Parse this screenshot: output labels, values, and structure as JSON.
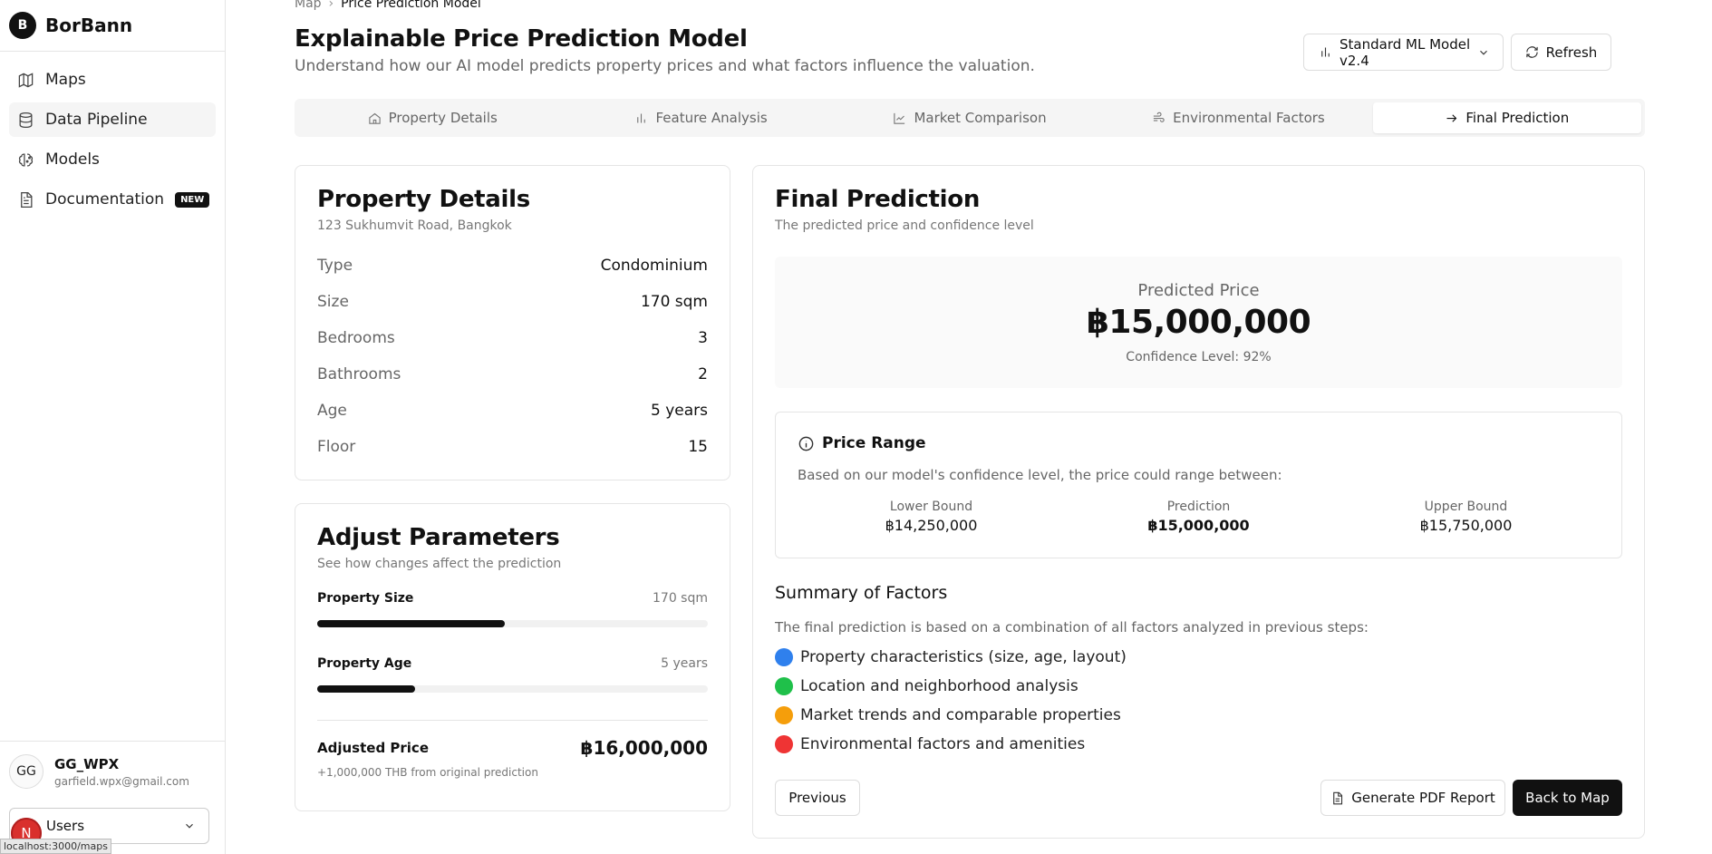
{
  "app": {
    "logo_letter": "B",
    "name": "BorBann"
  },
  "sidebar": {
    "items": [
      {
        "label": "Maps",
        "icon": "map-icon"
      },
      {
        "label": "Data Pipeline",
        "icon": "database-icon"
      },
      {
        "label": "Models",
        "icon": "brain-icon"
      },
      {
        "label": "Documentation",
        "icon": "document-icon",
        "badge": "NEW"
      }
    ]
  },
  "user": {
    "initials": "GG",
    "name": "GG_WPX",
    "email": "garfield.wpx@gmail.com"
  },
  "users_select": {
    "value": "Users"
  },
  "overlay": {
    "badge_letter": "N",
    "url_tooltip": "localhost:3000/maps"
  },
  "breadcrumb": {
    "parent": "Map",
    "current": "Price Prediction Model"
  },
  "header": {
    "title": "Explainable Price Prediction Model",
    "subtitle": "Understand how our AI model predicts property prices and what factors influence the valuation.",
    "model_select": "Standard ML Model v2.4",
    "refresh_label": "Refresh"
  },
  "tabs": [
    {
      "label": "Property Details",
      "icon": "home-icon"
    },
    {
      "label": "Feature Analysis",
      "icon": "bar-chart-icon"
    },
    {
      "label": "Market Comparison",
      "icon": "line-chart-icon"
    },
    {
      "label": "Environmental Factors",
      "icon": "wind-icon"
    },
    {
      "label": "Final Prediction",
      "icon": "arrow-right-icon",
      "active": true
    }
  ],
  "property": {
    "title": "Property Details",
    "address": "123 Sukhumvit Road, Bangkok",
    "rows": [
      {
        "key": "Type",
        "value": "Condominium"
      },
      {
        "key": "Size",
        "value": "170 sqm"
      },
      {
        "key": "Bedrooms",
        "value": "3"
      },
      {
        "key": "Bathrooms",
        "value": "2"
      },
      {
        "key": "Age",
        "value": "5 years"
      },
      {
        "key": "Floor",
        "value": "15"
      }
    ]
  },
  "adjust": {
    "title": "Adjust Parameters",
    "subtitle": "See how changes affect the prediction",
    "size": {
      "label": "Property Size",
      "value": "170 sqm",
      "fill_pct": 48
    },
    "age": {
      "label": "Property Age",
      "value": "5 years",
      "fill_pct": 25
    },
    "adjusted_label": "Adjusted Price",
    "adjusted_value": "฿16,000,000",
    "adjusted_note": "+1,000,000 THB from original prediction"
  },
  "final": {
    "title": "Final Prediction",
    "subtitle": "The predicted price and confidence level",
    "predicted_label": "Predicted Price",
    "predicted_value": "฿15,000,000",
    "confidence": "Confidence Level: 92%",
    "range": {
      "title": "Price Range",
      "desc": "Based on our model's confidence level, the price could range between:",
      "lower_label": "Lower Bound",
      "lower_value": "฿14,250,000",
      "pred_label": "Prediction",
      "pred_value": "฿15,000,000",
      "upper_label": "Upper Bound",
      "upper_value": "฿15,750,000"
    },
    "summary_title": "Summary of Factors",
    "summary_desc": "The final prediction is based on a combination of all factors analyzed in previous steps:",
    "factors": [
      {
        "label": "Property characteristics (size, age, layout)",
        "color": "#2f80ed"
      },
      {
        "label": "Location and neighborhood analysis",
        "color": "#1fc04a"
      },
      {
        "label": "Market trends and comparable properties",
        "color": "#f59e0b"
      },
      {
        "label": "Environmental factors and amenities",
        "color": "#ef3434"
      }
    ],
    "buttons": {
      "previous": "Previous",
      "pdf": "Generate PDF Report",
      "back": "Back to Map"
    }
  }
}
